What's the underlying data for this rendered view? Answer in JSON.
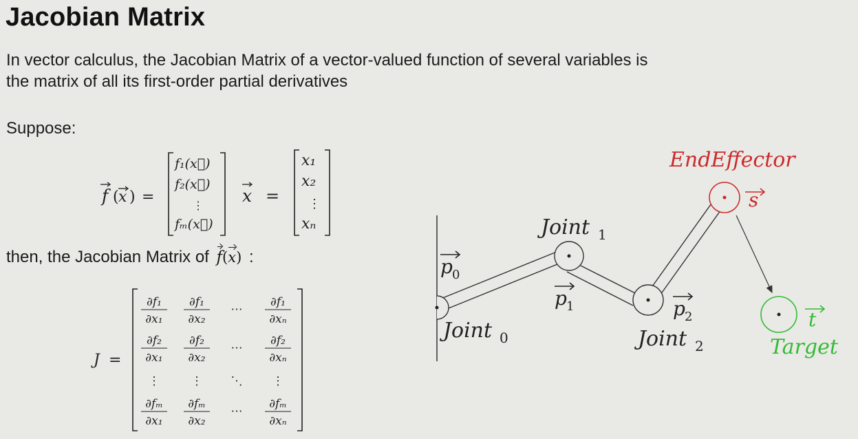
{
  "slide": {
    "title": "Jacobian Matrix",
    "paragraph": "In vector calculus, the Jacobian Matrix of a vector-valued function of several variables is the matrix of all its first-order partial derivatives",
    "suppose": "Suppose:",
    "then_prefix": "then, the Jacobian Matrix of",
    "then_suffix": ":"
  },
  "formulas": {
    "f_symbol": "f",
    "x_symbol": "x",
    "equals": "=",
    "f_entries": [
      "f₁(x⃗)",
      "f₂(x⃗)",
      "⋮",
      "fₘ(x⃗)"
    ],
    "x_entries": [
      "x₁",
      "x₂",
      "⋮",
      "xₙ"
    ],
    "J_symbol": "J",
    "jacobian_rows": [
      [
        "∂f₁/∂x₁",
        "∂f₁/∂x₂",
        "⋯",
        "∂f₁/∂xₙ"
      ],
      [
        "∂f₂/∂x₁",
        "∂f₂/∂x₂",
        "⋯",
        "∂f₂/∂xₙ"
      ],
      [
        "⋮",
        "⋮",
        "⋱",
        "⋮"
      ],
      [
        "∂fₘ/∂x₁",
        "∂fₘ/∂x₂",
        "⋯",
        "∂fₘ/∂xₙ"
      ]
    ]
  },
  "diagram": {
    "joint0_label": "Joint",
    "joint0_sub": "0",
    "joint1_label": "Joint",
    "joint1_sub": "1",
    "joint2_label": "Joint",
    "joint2_sub": "2",
    "end_effector_label": "EndEffector",
    "target_label": "Target",
    "p0_label": "p",
    "p0_sub": "0",
    "p1_label": "p",
    "p1_sub": "1",
    "p2_label": "p",
    "p2_sub": "2",
    "s_label": "s",
    "t_label": "t",
    "colors": {
      "end_effector": "#cc2a2a",
      "target": "#33bb33",
      "ink": "#222222"
    }
  }
}
